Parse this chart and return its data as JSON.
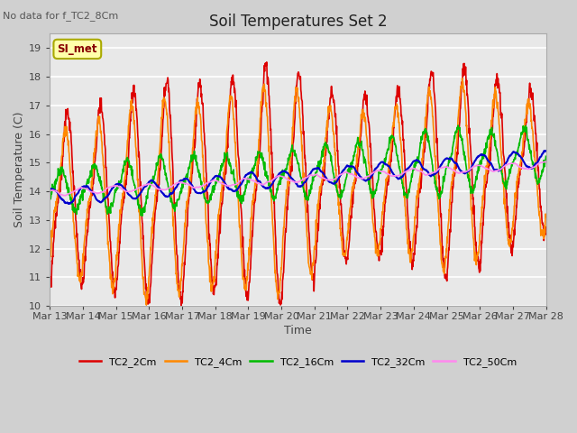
{
  "title": "Soil Temperatures Set 2",
  "xlabel": "Time",
  "ylabel": "Soil Temperature (C)",
  "top_left_text": "No data for f_TC2_8Cm",
  "annotation_box": "SI_met",
  "ylim": [
    10.0,
    19.5
  ],
  "yticks": [
    10.0,
    11.0,
    12.0,
    13.0,
    14.0,
    15.0,
    16.0,
    17.0,
    18.0,
    19.0
  ],
  "fig_bg": "#d0d0d0",
  "axes_bg": "#e8e8e8",
  "series": [
    {
      "name": "TC2_2Cm",
      "color": "#dd0000",
      "lw": 1.2
    },
    {
      "name": "TC2_4Cm",
      "color": "#ff8800",
      "lw": 1.2
    },
    {
      "name": "TC2_16Cm",
      "color": "#00bb00",
      "lw": 1.2
    },
    {
      "name": "TC2_32Cm",
      "color": "#0000cc",
      "lw": 1.5
    },
    {
      "name": "TC2_50Cm",
      "color": "#ff88ee",
      "lw": 1.2
    }
  ],
  "date_labels": [
    "Mar 13",
    "Mar 14",
    "Mar 15",
    "Mar 16",
    "Mar 17",
    "Mar 18",
    "Mar 19",
    "Mar 20",
    "Mar 21",
    "Mar 22",
    "Mar 23",
    "Mar 24",
    "Mar 25",
    "Mar 26",
    "Mar 27",
    "Mar 28"
  ]
}
